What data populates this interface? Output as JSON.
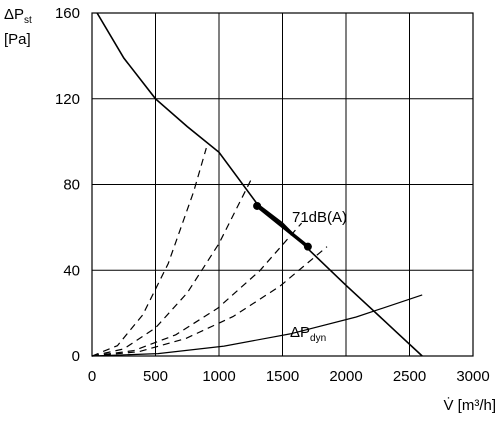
{
  "chart_data": {
    "type": "line",
    "y_label": {
      "symbol": "ΔP",
      "sub": "st",
      "unit": "[Pa]"
    },
    "x_label": "V̇ [m³/h]",
    "xlim": [
      0,
      3000
    ],
    "xticks": [
      0,
      500,
      1000,
      1500,
      2000,
      2500,
      3000
    ],
    "ylim": [
      0,
      160
    ],
    "yticks": [
      0,
      40,
      80,
      120,
      160
    ],
    "grid": true,
    "series": [
      {
        "style": "solid",
        "width": 1.6,
        "color": "#000000",
        "x": [
          40,
          250,
          500,
          750,
          1000,
          1300,
          1500,
          1700,
          2000,
          2200,
          2400,
          2600
        ],
        "values": [
          160,
          139,
          120,
          107,
          95,
          71,
          62,
          50,
          33,
          22,
          11,
          0
        ]
      },
      {
        "style": "dashed",
        "width": 1.2,
        "color": "#000000",
        "x": [
          0,
          200,
          400,
          600,
          800,
          900
        ],
        "values": [
          0,
          4.8,
          19.2,
          43.1,
          76.6,
          97
        ]
      },
      {
        "style": "dashed",
        "width": 1.2,
        "color": "#000000",
        "x": [
          0,
          250,
          500,
          750,
          1000,
          1250
        ],
        "values": [
          0,
          3.3,
          13.1,
          29.5,
          52.5,
          82
        ]
      },
      {
        "style": "dashed",
        "width": 1.2,
        "color": "#000000",
        "x": [
          0,
          330,
          660,
          990,
          1320,
          1650
        ],
        "values": [
          0,
          2.5,
          9.9,
          22.3,
          39.7,
          62
        ]
      },
      {
        "style": "dashed",
        "width": 1.2,
        "color": "#000000",
        "x": [
          0,
          370,
          740,
          1110,
          1480,
          1850
        ],
        "values": [
          0,
          2.0,
          8.2,
          18.4,
          32.6,
          51
        ]
      },
      {
        "style": "solid",
        "width": 1.2,
        "color": "#000000",
        "x": [
          0,
          520,
          1040,
          1560,
          2080,
          2600
        ],
        "values": [
          0,
          1.1,
          4.6,
          10.3,
          18.2,
          28.5
        ]
      },
      {
        "style": "solid",
        "width": 3.5,
        "color": "#000000",
        "markers": true,
        "x": [
          1300,
          1700
        ],
        "values": [
          70,
          51
        ]
      }
    ],
    "annotations": [
      {
        "text": "71dB(A)"
      },
      {
        "symbol": "ΔP",
        "sub": "dyn"
      }
    ]
  }
}
